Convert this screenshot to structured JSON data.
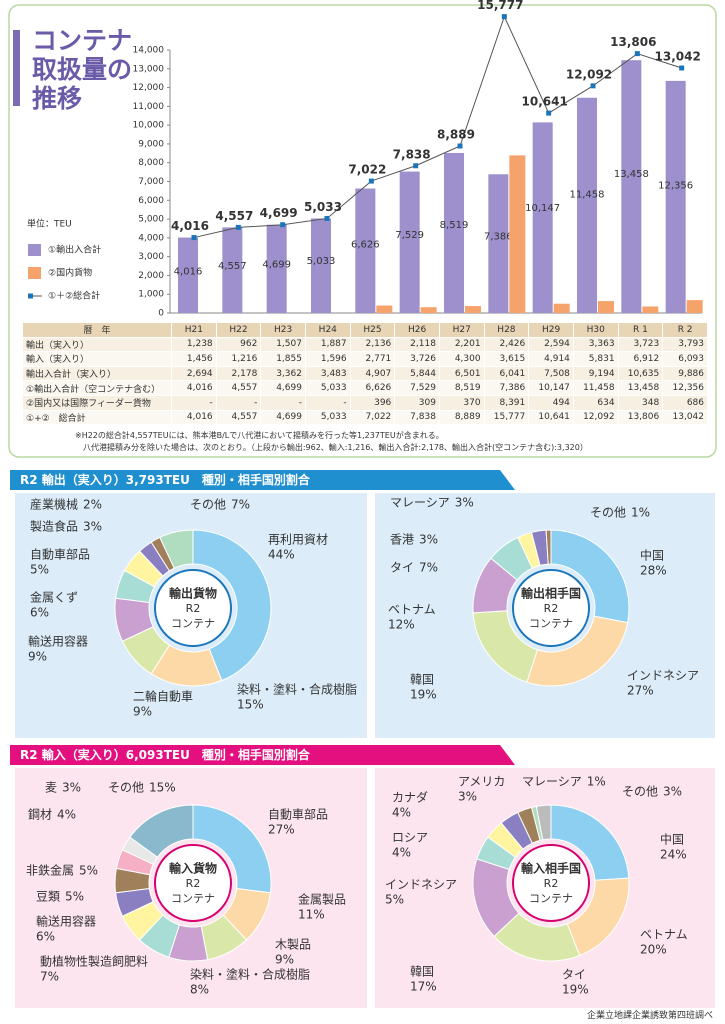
{
  "title": "コンテナ取扱量の推移",
  "unit": "単位：TEU",
  "chart_data": [
    {
      "type": "bar",
      "categories": [
        "H21",
        "H22",
        "H23",
        "H24",
        "H25",
        "H26",
        "H27",
        "H28",
        "H29",
        "H30",
        "R 1",
        "R 2"
      ],
      "ylim": [
        0,
        14000
      ],
      "yticks": [
        0,
        {
          "value": 1000,
          "label": "1,000"
        },
        {
          "value": 2000,
          "label": "2,000"
        },
        {
          "value": 3000,
          "label": "3,000"
        },
        {
          "value": 4000,
          "label": "4,000"
        },
        {
          "value": 5000,
          "label": "5,000"
        },
        {
          "value": 6000,
          "label": "6,000"
        },
        {
          "value": 7000,
          "label": "7,000"
        },
        {
          "value": 8000,
          "label": "8,000"
        },
        {
          "value": 9000,
          "label": "9,000"
        },
        {
          "value": 10000,
          "label": "10,000"
        },
        {
          "value": 11000,
          "label": "11,000"
        },
        {
          "value": 12000,
          "label": "12,000"
        },
        {
          "value": 13000,
          "label": "13,000"
        },
        {
          "value": 14000,
          "label": "14,000"
        }
      ],
      "grid": false,
      "series": [
        {
          "name": "①輸出入合計",
          "color": "#9d90cc",
          "values": [
            4016,
            4557,
            4699,
            5033,
            6626,
            7529,
            8519,
            7386,
            10147,
            11458,
            13458,
            12356
          ],
          "value_labels": [
            "4,016",
            "4,557",
            "4,699",
            "5,033",
            "6,626",
            "7,529",
            "8,519",
            "7,386",
            "10,147",
            "11,458",
            "13,458",
            "12,356"
          ]
        },
        {
          "name": "②国内貨物",
          "color": "#f5a36a",
          "values": [
            null,
            null,
            null,
            null,
            396,
            309,
            370,
            8391,
            494,
            634,
            348,
            686
          ]
        },
        {
          "name": "①＋②総合計",
          "type": "line",
          "color": "#1b75bb",
          "values": [
            4016,
            4557,
            4699,
            5033,
            7022,
            7838,
            8889,
            15777,
            10641,
            12092,
            13806,
            13042
          ],
          "value_labels": [
            "4,016",
            "4,557",
            "4,699",
            "5,033",
            "7,022",
            "7,838",
            "8,889",
            "15,777",
            "10,641",
            "12,092",
            "13,806",
            "13,042"
          ]
        }
      ]
    },
    {
      "type": "pie",
      "center_text": [
        "輸出貨物",
        "R2",
        "コンテナ"
      ],
      "categories": [
        "再利用資材",
        "染料・塗料・合成樹脂",
        "二輪自動車",
        "輸送用容器",
        "金属くず",
        "自動車部品",
        "製造食品",
        "産業機械",
        "その他"
      ],
      "values": [
        44,
        15,
        9,
        9,
        6,
        5,
        3,
        2,
        7
      ],
      "value_labels": [
        "44%",
        "15%",
        "9%",
        "9%",
        "6%",
        "5%",
        "3%",
        "2%",
        "7%"
      ],
      "colors": [
        "#8ccff0",
        "#fdd9a8",
        "#d9e8a8",
        "#c9a0cf",
        "#a8ddd6",
        "#fff4a0",
        "#8a7fc0",
        "#a0805a",
        "#b0dcbf"
      ]
    },
    {
      "type": "pie",
      "center_text": [
        "輸出相手国",
        "R2",
        "コンテナ"
      ],
      "categories": [
        "中国",
        "インドネシア",
        "韓国",
        "ベトナム",
        "タイ",
        "香港",
        "マレーシア",
        "その他"
      ],
      "values": [
        28,
        27,
        19,
        12,
        7,
        3,
        3,
        1
      ],
      "value_labels": [
        "28%",
        "27%",
        "19%",
        "12%",
        "7%",
        "3%",
        "3%",
        "1%"
      ],
      "colors": [
        "#8ccff0",
        "#fdd9a8",
        "#d9e8a8",
        "#c9a0cf",
        "#a8ddd6",
        "#fff4a0",
        "#8a7fc0",
        "#a0805a"
      ]
    },
    {
      "type": "pie",
      "center_text": [
        "輸入貨物",
        "R2",
        "コンテナ"
      ],
      "categories": [
        "自動車部品",
        "金属製品",
        "木製品",
        "染料・塗料・合成樹脂",
        "動植物性製造飼肥料",
        "輸送用容器",
        "豆類",
        "非鉄金属",
        "鋼材",
        "麦",
        "その他"
      ],
      "values": [
        27,
        11,
        9,
        8,
        7,
        6,
        5,
        5,
        4,
        3,
        15
      ],
      "value_labels": [
        "27%",
        "11%",
        "9%",
        "8%",
        "7%",
        "6%",
        "5%",
        "5%",
        "4%",
        "3%",
        "15%"
      ],
      "colors": [
        "#8ccff0",
        "#fdd9a8",
        "#d9e8a8",
        "#c9a0cf",
        "#a8ddd6",
        "#fff4a0",
        "#8a7fc0",
        "#a0805a",
        "#f5b0c5",
        "#e8e8e8",
        "#8ab8cc"
      ]
    },
    {
      "type": "pie",
      "center_text": [
        "輸入相手国",
        "R2",
        "コンテナ"
      ],
      "categories": [
        "中国",
        "ベトナム",
        "タイ",
        "韓国",
        "インドネシア",
        "ロシア",
        "カナダ",
        "アメリカ",
        "マレーシア",
        "その他"
      ],
      "values": [
        24,
        20,
        19,
        17,
        5,
        4,
        4,
        3,
        1,
        3
      ],
      "value_labels": [
        "24%",
        "20%",
        "19%",
        "17%",
        "5%",
        "4%",
        "4%",
        "3%",
        "1%",
        "3%"
      ],
      "colors": [
        "#8ccff0",
        "#fdd9a8",
        "#d9e8a8",
        "#c9a0cf",
        "#a8ddd6",
        "#fff4a0",
        "#8a7fc0",
        "#a0805a",
        "#b0dcbf",
        "#bbbbbb"
      ]
    }
  ],
  "table": {
    "header_label": "暦　年",
    "rows": [
      {
        "label": "輸出（実入り）",
        "cells": [
          "1,238",
          "962",
          "1,507",
          "1,887",
          "2,136",
          "2,118",
          "2,201",
          "2,426",
          "2,594",
          "3,363",
          "3,723",
          "3,793"
        ]
      },
      {
        "label": "輸入（実入り）",
        "cells": [
          "1,456",
          "1,216",
          "1,855",
          "1,596",
          "2,771",
          "3,726",
          "4,300",
          "3,615",
          "4,914",
          "5,831",
          "6,912",
          "6,093"
        ]
      },
      {
        "label": "輸出入合計（実入り）",
        "cells": [
          "2,694",
          "2,178",
          "3,362",
          "3,483",
          "4,907",
          "5,844",
          "6,501",
          "6,041",
          "7,508",
          "9,194",
          "10,635",
          "9,886"
        ]
      },
      {
        "label": "①輸出入合計（空コンテナ含む）",
        "cells": [
          "4,016",
          "4,557",
          "4,699",
          "5,033",
          "6,626",
          "7,529",
          "8,519",
          "7,386",
          "10,147",
          "11,458",
          "13,458",
          "12,356"
        ]
      },
      {
        "label": "②国内又は国際フィーダー貨物",
        "cells": [
          "-",
          "-",
          "-",
          "-",
          "396",
          "309",
          "370",
          "8,391",
          "494",
          "634",
          "348",
          "686"
        ]
      },
      {
        "label": "①+②　総合計",
        "cells": [
          "4,016",
          "4,557",
          "4,699",
          "5,033",
          "7,022",
          "7,838",
          "8,889",
          "15,777",
          "10,641",
          "12,092",
          "13,806",
          "13,042"
        ]
      }
    ]
  },
  "notes": [
    "※H22の総合計4,557TEUには、熊本港B/Lで八代港において揚積みを行った等1,237TEUが含まれる。",
    "八代港揚積み分を除いた場合は、次のとおり。（上段から輸出:962、輸入:1,216、輸出入合計:2,178、輸出入合計(空コンテナ含む):3,320）"
  ],
  "sections": [
    "R2 輸出（実入り）3,793TEU　種別・相手国別割合",
    "R2 輸入（実入り）6,093TEU　種別・相手国別割合"
  ],
  "source": "企業立地課企業誘致第四班調べ"
}
